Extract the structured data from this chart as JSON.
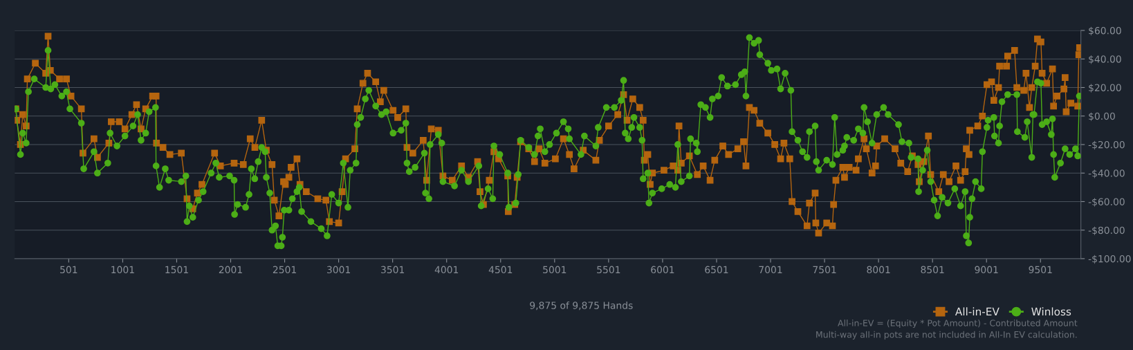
{
  "chart_data": {
    "type": "line",
    "xlim": [
      1,
      9875
    ],
    "xticks": [
      501,
      1001,
      1501,
      2001,
      2501,
      3001,
      3501,
      4001,
      4501,
      5001,
      5501,
      6001,
      6501,
      7001,
      7501,
      8001,
      8501,
      9001,
      9501
    ],
    "ylim": [
      -100,
      60
    ],
    "yticks": [
      {
        "value": 60,
        "label": "$60.00"
      },
      {
        "value": 40,
        "label": "$40.00"
      },
      {
        "value": 20,
        "label": "$20.00"
      },
      {
        "value": 0,
        "label": "$0.00"
      },
      {
        "value": -20,
        "label": "-$20.00"
      },
      {
        "value": -40,
        "label": "-$40.00"
      },
      {
        "value": -60,
        "label": "-$60.00"
      },
      {
        "value": -80,
        "label": "-$80.00"
      },
      {
        "value": -100,
        "label": "-$100.00"
      }
    ],
    "grid": "y",
    "legend": "bottom right",
    "annotations": [
      "9,875 of 9,875 Hands",
      "All-in-EV = (Equity * Pot Amount) - Contributed Amount",
      "Multi-way all-in pots are not included in All-In EV calculation."
    ],
    "series": [
      {
        "name": "All-in-EV",
        "color": "#b5650f",
        "marker": "square",
        "x": [
          11,
          20,
          54,
          75,
          107,
          118,
          192,
          288,
          310,
          331,
          416,
          480,
          522,
          618,
          633,
          735,
          767,
          873,
          895,
          969,
          1022,
          1086,
          1129,
          1171,
          1214,
          1278,
          1310,
          1314,
          1374,
          1438,
          1544,
          1597,
          1650,
          1693,
          1735,
          1852,
          1906,
          2033,
          2118,
          2182,
          2225,
          2288,
          2331,
          2384,
          2405,
          2448,
          2491,
          2507,
          2540,
          2561,
          2615,
          2643,
          2701,
          2808,
          2883,
          2915,
          3001,
          3033,
          3065,
          3151,
          3173,
          3226,
          3269,
          3344,
          3387,
          3419,
          3505,
          3548,
          3623,
          3634,
          3688,
          3784,
          3816,
          3859,
          3924,
          3967,
          4053,
          4139,
          4203,
          4288,
          4310,
          4342,
          4396,
          4439,
          4482,
          4567,
          4572,
          4632,
          4654,
          4686,
          4761,
          4815,
          4858,
          4911,
          5008,
          5083,
          5138,
          5181,
          5266,
          5383,
          5416,
          5501,
          5586,
          5640,
          5672,
          5725,
          5789,
          5821,
          5832,
          5864,
          5886,
          5907,
          6014,
          6099,
          6142,
          6153,
          6174,
          6249,
          6323,
          6377,
          6441,
          6484,
          6559,
          6612,
          6698,
          6751,
          6773,
          6805,
          6848,
          6901,
          6976,
          7040,
          7094,
          7125,
          7179,
          7200,
          7254,
          7339,
          7361,
          7414,
          7420,
          7446,
          7521,
          7574,
          7585,
          7606,
          7670,
          7686,
          7729,
          7793,
          7814,
          7867,
          7888,
          7941,
          7973,
          7984,
          8058,
          8154,
          8207,
          8271,
          8314,
          8367,
          8378,
          8420,
          8463,
          8484,
          8559,
          8601,
          8654,
          8718,
          8761,
          8803,
          8814,
          8839,
          8846,
          8920,
          8963,
          9005,
          9048,
          9069,
          9112,
          9122,
          9186,
          9197,
          9261,
          9282,
          9346,
          9367,
          9399,
          9420,
          9452,
          9473,
          9505,
          9516,
          9558,
          9612,
          9622,
          9654,
          9718,
          9729,
          9739,
          9782,
          9846,
          9856,
          9863
        ],
        "values": [
          5,
          -3,
          -20,
          1,
          -7,
          26,
          37,
          30,
          56,
          32,
          26,
          26,
          14,
          5,
          -26,
          -16,
          -29,
          -19,
          -4,
          -4,
          -9,
          1,
          8,
          -9,
          5,
          14,
          14,
          -19,
          -22,
          -27,
          -26,
          -58,
          -65,
          -54,
          -48,
          -26,
          -35,
          -33,
          -34,
          -16,
          -22,
          -3,
          -24,
          -34,
          -59,
          -70,
          -46,
          -48,
          -43,
          -36,
          -30,
          -48,
          -53,
          -58,
          -59,
          -74,
          -75,
          -53,
          -30,
          -23,
          5,
          23,
          30,
          24,
          10,
          18,
          4,
          -1,
          5,
          -22,
          -26,
          -17,
          -45,
          -9,
          -10,
          -42,
          -45,
          -35,
          -43,
          -32,
          -53,
          -62,
          -45,
          -25,
          -30,
          -42,
          -67,
          -62,
          -43,
          -18,
          -23,
          -32,
          -23,
          -33,
          -30,
          -16,
          -27,
          -37,
          -24,
          -31,
          -17,
          -7,
          1,
          15,
          -3,
          12,
          6,
          -3,
          -31,
          -27,
          -48,
          -40,
          -38,
          -35,
          -38,
          -7,
          -33,
          -28,
          -41,
          -35,
          -45,
          -31,
          -21,
          -27,
          -23,
          -18,
          -35,
          6,
          4,
          -5,
          -12,
          -20,
          -30,
          -19,
          -30,
          -60,
          -67,
          -77,
          -61,
          -54,
          -75,
          -82,
          -75,
          -77,
          -62,
          -45,
          -36,
          -43,
          -36,
          -38,
          -30,
          -16,
          -23,
          -40,
          -35,
          -21,
          -16,
          -23,
          -33,
          -39,
          -28,
          -34,
          -46,
          -32,
          -14,
          -41,
          -53,
          -41,
          -46,
          -35,
          -45,
          -39,
          -23,
          -27,
          -10,
          -7,
          0,
          22,
          24,
          11,
          20,
          35,
          35,
          42,
          46,
          20,
          18,
          30,
          6,
          20,
          35,
          54,
          52,
          30,
          23,
          33,
          7,
          14,
          19,
          27,
          3,
          9,
          7,
          43,
          48
        ]
      },
      {
        "name": "Winloss",
        "color": "#4cae17",
        "marker": "circle",
        "x": [
          11,
          54,
          75,
          107,
          128,
          182,
          288,
          310,
          335,
          373,
          437,
          480,
          512,
          618,
          640,
          735,
          767,
          863,
          884,
          948,
          1022,
          1097,
          1139,
          1171,
          1214,
          1246,
          1305,
          1310,
          1342,
          1395,
          1427,
          1544,
          1586,
          1597,
          1618,
          1650,
          1703,
          1746,
          1820,
          1863,
          1895,
          1991,
          2033,
          2037,
          2065,
          2139,
          2171,
          2192,
          2224,
          2256,
          2288,
          2320,
          2331,
          2363,
          2384,
          2416,
          2437,
          2469,
          2480,
          2497,
          2540,
          2572,
          2615,
          2636,
          2658,
          2744,
          2840,
          2894,
          2937,
          3001,
          3044,
          3087,
          3108,
          3162,
          3173,
          3205,
          3248,
          3280,
          3344,
          3398,
          3441,
          3505,
          3580,
          3623,
          3634,
          3655,
          3709,
          3795,
          3805,
          3837,
          3848,
          3924,
          3956,
          3967,
          4074,
          4139,
          4203,
          4299,
          4321,
          4385,
          4428,
          4439,
          4493,
          4567,
          4578,
          4642,
          4664,
          4686,
          4761,
          4815,
          4847,
          4868,
          4911,
          4954,
          5018,
          5083,
          5127,
          5138,
          5245,
          5277,
          5383,
          5405,
          5480,
          5554,
          5618,
          5640,
          5655,
          5683,
          5715,
          5736,
          5789,
          5811,
          5821,
          5864,
          5875,
          5907,
          5993,
          6067,
          6120,
          6142,
          6174,
          6249,
          6260,
          6313,
          6323,
          6355,
          6398,
          6441,
          6462,
          6516,
          6548,
          6602,
          6676,
          6730,
          6762,
          6773,
          6805,
          6848,
          6890,
          6901,
          6976,
          7008,
          7061,
          7094,
          7136,
          7189,
          7200,
          7254,
          7297,
          7339,
          7361,
          7414,
          7425,
          7446,
          7521,
          7574,
          7595,
          7617,
          7670,
          7686,
          7707,
          7771,
          7814,
          7856,
          7867,
          7899,
          7941,
          7984,
          8048,
          8090,
          8186,
          8218,
          8282,
          8303,
          8367,
          8372,
          8410,
          8452,
          8484,
          8516,
          8548,
          8590,
          8644,
          8707,
          8761,
          8803,
          8814,
          8835,
          8846,
          8867,
          8899,
          8952,
          8963,
          9005,
          9016,
          9069,
          9075,
          9112,
          9122,
          9144,
          9197,
          9282,
          9287,
          9356,
          9378,
          9420,
          9431,
          9441,
          9473,
          9505,
          9516,
          9558,
          9601,
          9612,
          9622,
          9633,
          9686,
          9729,
          9771,
          9825,
          9846,
          9861
        ],
        "values": [
          5,
          -27,
          -12,
          -19,
          17,
          26,
          20,
          46,
          19,
          22,
          14,
          17,
          5,
          -5,
          -37,
          -25,
          -40,
          -33,
          -12,
          -21,
          -14,
          -7,
          1,
          -17,
          -12,
          3,
          6,
          -35,
          -50,
          -37,
          -45,
          -46,
          -42,
          -74,
          -63,
          -71,
          -59,
          -53,
          -40,
          -33,
          -43,
          -42,
          -45,
          -69,
          -62,
          -64,
          -55,
          -37,
          -44,
          -32,
          -22,
          -25,
          -43,
          -54,
          -80,
          -77,
          -91,
          -91,
          -85,
          -66,
          -66,
          -58,
          -53,
          -50,
          -67,
          -74,
          -79,
          -84,
          -55,
          -61,
          -33,
          -64,
          -38,
          -33,
          -6,
          -1,
          12,
          18,
          7,
          1,
          3,
          -12,
          -10,
          -5,
          -33,
          -39,
          -36,
          -26,
          -54,
          -58,
          -20,
          -13,
          -19,
          -46,
          -49,
          -38,
          -46,
          -35,
          -63,
          -51,
          -58,
          -21,
          -27,
          -40,
          -64,
          -61,
          -41,
          -17,
          -22,
          -27,
          -14,
          -9,
          -25,
          -20,
          -12,
          -4,
          -9,
          -16,
          -27,
          -14,
          -21,
          -8,
          6,
          6,
          11,
          25,
          -12,
          -16,
          -8,
          -1,
          -8,
          -17,
          -44,
          -40,
          -61,
          -54,
          -51,
          -48,
          -50,
          -20,
          -46,
          -42,
          -16,
          -19,
          -25,
          8,
          6,
          -1,
          12,
          14,
          27,
          21,
          22,
          29,
          31,
          14,
          55,
          51,
          53,
          43,
          37,
          32,
          33,
          19,
          30,
          18,
          -11,
          -17,
          -25,
          -29,
          -11,
          -7,
          -32,
          -38,
          -31,
          -34,
          -1,
          -27,
          -24,
          -21,
          -15,
          -17,
          -9,
          -12,
          6,
          -4,
          -19,
          1,
          6,
          1,
          -6,
          -18,
          -19,
          -29,
          -30,
          -53,
          -38,
          -24,
          -46,
          -59,
          -70,
          -57,
          -61,
          -51,
          -63,
          -53,
          -84,
          -89,
          -71,
          -58,
          -46,
          -51,
          -25,
          -8,
          -3,
          -1,
          -14,
          -19,
          -7,
          10,
          15,
          15,
          -11,
          -15,
          -4,
          -29,
          1,
          1,
          24,
          23,
          -6,
          -4,
          -13,
          -2,
          -27,
          -43,
          -33,
          -23,
          -27,
          -23,
          -28,
          14
        ]
      }
    ]
  }
}
